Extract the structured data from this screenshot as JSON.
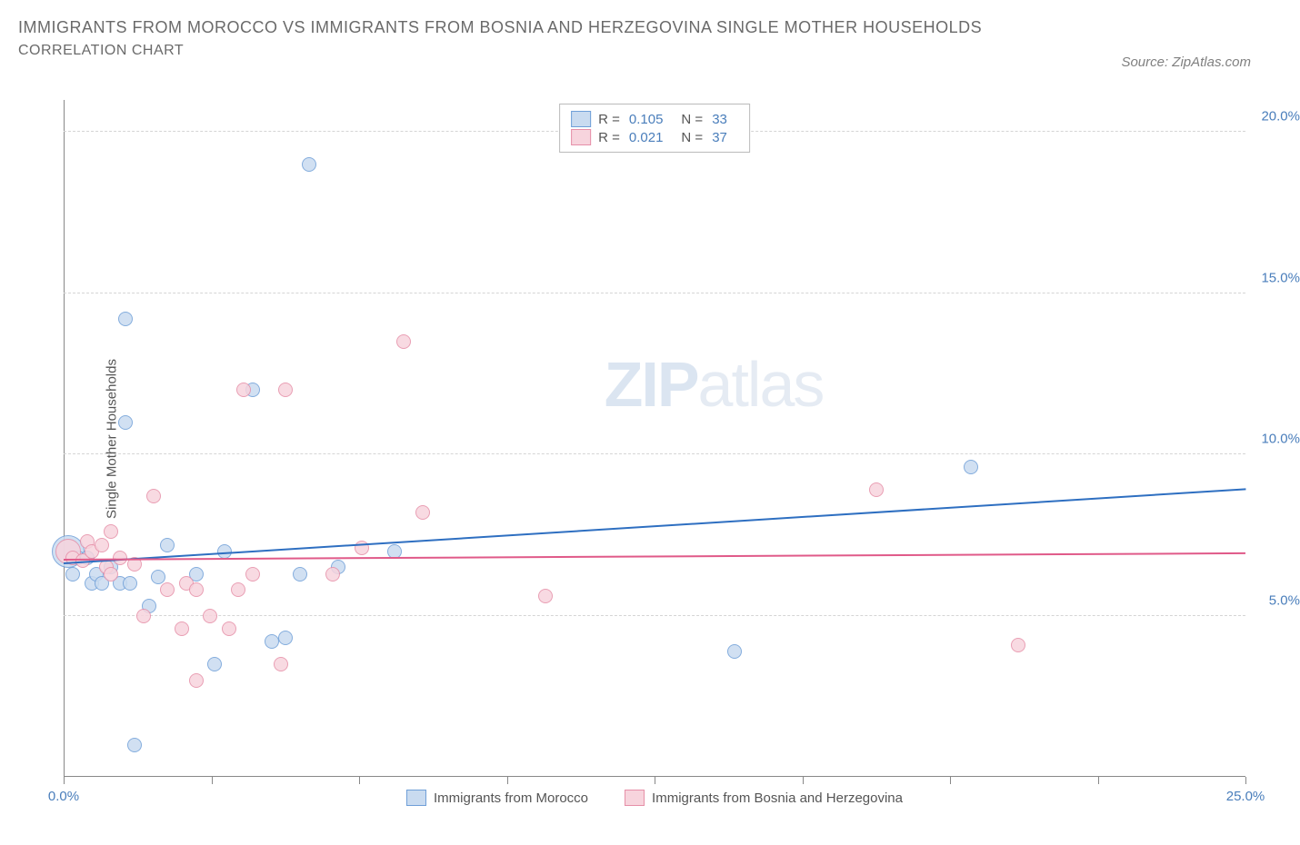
{
  "title": "IMMIGRANTS FROM MOROCCO VS IMMIGRANTS FROM BOSNIA AND HERZEGOVINA SINGLE MOTHER HOUSEHOLDS",
  "subtitle": "CORRELATION CHART",
  "source": "Source: ZipAtlas.com",
  "watermark_bold": "ZIP",
  "watermark_thin": "atlas",
  "y_axis_title": "Single Mother Households",
  "axes": {
    "xlim": [
      0,
      25
    ],
    "ylim": [
      0,
      21
    ],
    "x_ticks": [
      0,
      3.125,
      6.25,
      9.375,
      12.5,
      15.625,
      18.75,
      21.875,
      25
    ],
    "x_tick_labels": {
      "0": "0.0%",
      "25": "25.0%"
    },
    "y_grid": [
      5,
      10,
      15,
      20
    ],
    "y_labels": {
      "5": "5.0%",
      "10": "10.0%",
      "15": "15.0%",
      "20": "20.0%"
    },
    "grid_color": "#d5d5d5",
    "axis_color": "#888888",
    "tick_label_color": "#4a7ebb"
  },
  "series": [
    {
      "key": "morocco",
      "label": "Immigrants from Morocco",
      "fill": "#c9dbf0",
      "stroke": "#6f9fd8",
      "trend_color": "#2e6fc1",
      "R": "0.105",
      "N": "33",
      "trend": {
        "y_start": 6.6,
        "y_end": 8.9
      },
      "points": [
        {
          "x": 0.1,
          "y": 7.0,
          "r": 18
        },
        {
          "x": 0.2,
          "y": 6.3,
          "r": 8
        },
        {
          "x": 0.3,
          "y": 6.8,
          "r": 8
        },
        {
          "x": 0.5,
          "y": 6.8,
          "r": 8
        },
        {
          "x": 0.6,
          "y": 6.0,
          "r": 8
        },
        {
          "x": 0.7,
          "y": 6.3,
          "r": 8
        },
        {
          "x": 0.8,
          "y": 6.0,
          "r": 8
        },
        {
          "x": 1.0,
          "y": 6.5,
          "r": 8
        },
        {
          "x": 1.2,
          "y": 6.0,
          "r": 8
        },
        {
          "x": 1.4,
          "y": 6.0,
          "r": 8
        },
        {
          "x": 1.3,
          "y": 14.2,
          "r": 8
        },
        {
          "x": 1.8,
          "y": 5.3,
          "r": 8
        },
        {
          "x": 2.0,
          "y": 6.2,
          "r": 8
        },
        {
          "x": 2.2,
          "y": 7.2,
          "r": 8
        },
        {
          "x": 2.8,
          "y": 6.3,
          "r": 8
        },
        {
          "x": 3.2,
          "y": 3.5,
          "r": 8
        },
        {
          "x": 3.4,
          "y": 7.0,
          "r": 8
        },
        {
          "x": 1.5,
          "y": 1.0,
          "r": 8
        },
        {
          "x": 1.3,
          "y": 11.0,
          "r": 8
        },
        {
          "x": 4.0,
          "y": 12.0,
          "r": 8
        },
        {
          "x": 4.4,
          "y": 4.2,
          "r": 8
        },
        {
          "x": 4.7,
          "y": 4.3,
          "r": 8
        },
        {
          "x": 5.0,
          "y": 6.3,
          "r": 8
        },
        {
          "x": 5.2,
          "y": 19.0,
          "r": 8
        },
        {
          "x": 5.8,
          "y": 6.5,
          "r": 8
        },
        {
          "x": 7.0,
          "y": 7.0,
          "r": 8
        },
        {
          "x": 14.2,
          "y": 3.9,
          "r": 8
        },
        {
          "x": 19.2,
          "y": 9.6,
          "r": 8
        }
      ]
    },
    {
      "key": "bosnia",
      "label": "Immigrants from Bosnia and Herzegovina",
      "fill": "#f7d4dd",
      "stroke": "#e68fa8",
      "trend_color": "#e05a89",
      "R": "0.021",
      "N": "37",
      "trend": {
        "y_start": 6.7,
        "y_end": 6.9
      },
      "points": [
        {
          "x": 0.1,
          "y": 7.0,
          "r": 14
        },
        {
          "x": 0.2,
          "y": 6.8,
          "r": 8
        },
        {
          "x": 0.4,
          "y": 6.7,
          "r": 8
        },
        {
          "x": 0.5,
          "y": 7.3,
          "r": 8
        },
        {
          "x": 0.6,
          "y": 7.0,
          "r": 8
        },
        {
          "x": 0.8,
          "y": 7.2,
          "r": 8
        },
        {
          "x": 0.9,
          "y": 6.5,
          "r": 8
        },
        {
          "x": 1.0,
          "y": 6.3,
          "r": 8
        },
        {
          "x": 1.0,
          "y": 7.6,
          "r": 8
        },
        {
          "x": 1.2,
          "y": 6.8,
          "r": 8
        },
        {
          "x": 1.5,
          "y": 6.6,
          "r": 8
        },
        {
          "x": 1.7,
          "y": 5.0,
          "r": 8
        },
        {
          "x": 1.9,
          "y": 8.7,
          "r": 8
        },
        {
          "x": 2.2,
          "y": 5.8,
          "r": 8
        },
        {
          "x": 2.5,
          "y": 4.6,
          "r": 8
        },
        {
          "x": 2.6,
          "y": 6.0,
          "r": 8
        },
        {
          "x": 2.8,
          "y": 5.8,
          "r": 8
        },
        {
          "x": 3.1,
          "y": 5.0,
          "r": 8
        },
        {
          "x": 2.8,
          "y": 3.0,
          "r": 8
        },
        {
          "x": 3.5,
          "y": 4.6,
          "r": 8
        },
        {
          "x": 3.7,
          "y": 5.8,
          "r": 8
        },
        {
          "x": 3.8,
          "y": 12.0,
          "r": 8
        },
        {
          "x": 4.0,
          "y": 6.3,
          "r": 8
        },
        {
          "x": 4.6,
          "y": 3.5,
          "r": 8
        },
        {
          "x": 4.7,
          "y": 12.0,
          "r": 8
        },
        {
          "x": 5.7,
          "y": 6.3,
          "r": 8
        },
        {
          "x": 6.3,
          "y": 7.1,
          "r": 8
        },
        {
          "x": 7.2,
          "y": 13.5,
          "r": 8
        },
        {
          "x": 7.6,
          "y": 8.2,
          "r": 8
        },
        {
          "x": 10.2,
          "y": 5.6,
          "r": 8
        },
        {
          "x": 17.2,
          "y": 8.9,
          "r": 8
        },
        {
          "x": 20.2,
          "y": 4.1,
          "r": 8
        }
      ]
    }
  ],
  "legend_top_labels": {
    "R": "R =",
    "N": "N ="
  }
}
